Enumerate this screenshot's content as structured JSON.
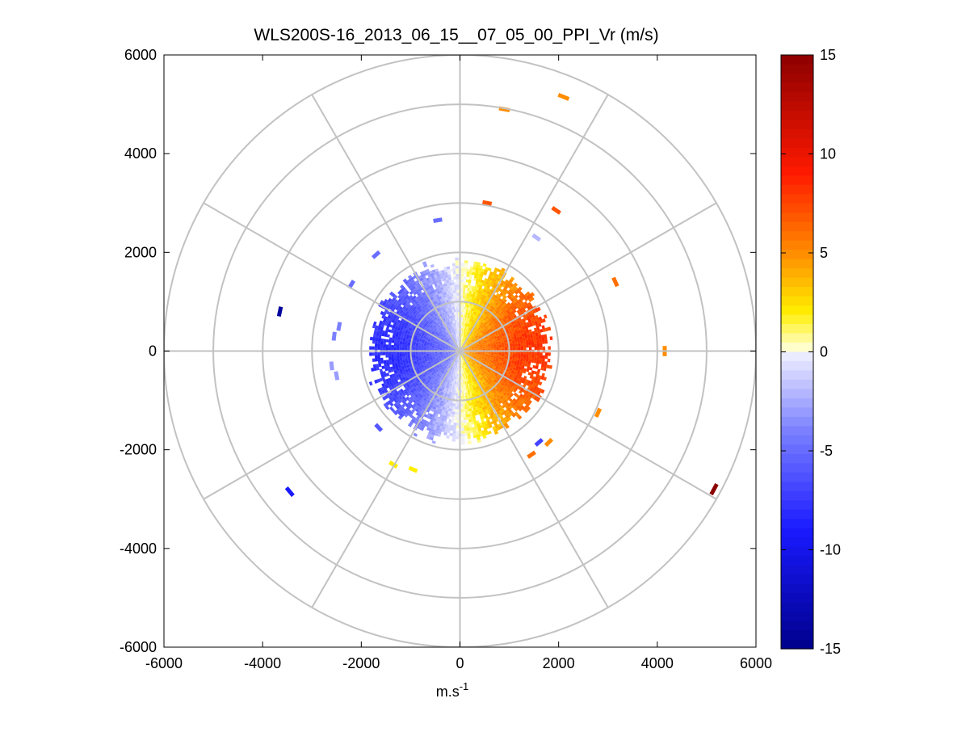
{
  "chart_data": {
    "type": "heatmap",
    "subtype": "polar-ppi-scan",
    "title": "WLS200S-16_2013_06_15__07_05_00_PPI_Vr (m/s)",
    "xlabel_base": "m.s",
    "xlabel_exponent": "-1",
    "ylabel": "",
    "xlim": [
      -6000,
      6000
    ],
    "ylim": [
      -6000,
      6000
    ],
    "xticks": [
      -6000,
      -4000,
      -2000,
      0,
      2000,
      4000,
      6000
    ],
    "yticks": [
      -6000,
      -4000,
      -2000,
      0,
      2000,
      4000,
      6000
    ],
    "xtick_labels": [
      "-6000",
      "-4000",
      "-2000",
      "0",
      "2000",
      "4000",
      "6000"
    ],
    "ytick_labels": [
      "-6000",
      "-4000",
      "-2000",
      "0",
      "2000",
      "4000",
      "6000"
    ],
    "polar_grid": {
      "range_rings": [
        1000,
        2000,
        3000,
        4000,
        5000,
        6000
      ],
      "spokes_deg": [
        0,
        30,
        60,
        90,
        120,
        150,
        180,
        210,
        240,
        270,
        300,
        330
      ]
    },
    "colorbar": {
      "clim": [
        -15,
        15
      ],
      "ticks": [
        -15,
        -10,
        -5,
        0,
        5,
        10,
        15
      ],
      "tick_labels": [
        "-15",
        "-10",
        "-5",
        "0",
        "5",
        "10",
        "15"
      ],
      "colors": {
        "min": "#00008b",
        "neg_mid": "#1a1aff",
        "neg_light": "#7b80ff",
        "zero_neg": "#ececff",
        "zero_pos": "#ffffd0",
        "pos_low": "#ffee00",
        "pos_mid": "#ff8c00",
        "pos_high": "#ff1a00",
        "max": "#8b0000"
      }
    },
    "dense_region": {
      "max_range_m": 1900,
      "description_values": "Approaching winds (negative Vr, blue) on the western half, receding winds (positive Vr, yellow-orange) on the eastern half; near-zero values along the north-south axis."
    },
    "scattered_returns": [
      {
        "x": 900,
        "y": 4900,
        "vr": 5
      },
      {
        "x": 2100,
        "y": 5150,
        "vr": 5
      },
      {
        "x": 550,
        "y": 3000,
        "vr": 7
      },
      {
        "x": 1950,
        "y": 2850,
        "vr": 7
      },
      {
        "x": 1550,
        "y": 2300,
        "vr": -2
      },
      {
        "x": 3150,
        "y": 1400,
        "vr": 6
      },
      {
        "x": 4150,
        "y": 0,
        "vr": 5
      },
      {
        "x": 2800,
        "y": -1250,
        "vr": 5
      },
      {
        "x": 1800,
        "y": -1850,
        "vr": 5
      },
      {
        "x": 1450,
        "y": -2100,
        "vr": 6
      },
      {
        "x": 1600,
        "y": -1850,
        "vr": -7
      },
      {
        "x": 5150,
        "y": -2800,
        "vr": 15
      },
      {
        "x": -450,
        "y": 2650,
        "vr": -5
      },
      {
        "x": -1700,
        "y": 1950,
        "vr": -5
      },
      {
        "x": -2200,
        "y": 1350,
        "vr": -5
      },
      {
        "x": -3650,
        "y": 800,
        "vr": -14
      },
      {
        "x": -2450,
        "y": 500,
        "vr": -4
      },
      {
        "x": -2550,
        "y": 300,
        "vr": -4
      },
      {
        "x": -2600,
        "y": -300,
        "vr": -3
      },
      {
        "x": -2500,
        "y": -500,
        "vr": -3
      },
      {
        "x": -1650,
        "y": -1550,
        "vr": -6
      },
      {
        "x": -1350,
        "y": -2300,
        "vr": 2
      },
      {
        "x": -950,
        "y": -2400,
        "vr": 2
      },
      {
        "x": -3450,
        "y": -2850,
        "vr": -9
      }
    ]
  }
}
